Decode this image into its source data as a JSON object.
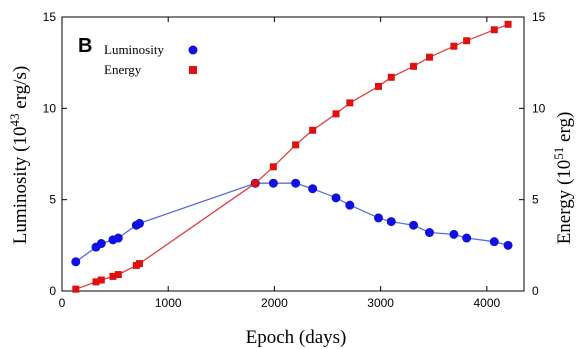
{
  "chart_data": {
    "type": "line",
    "panel_label": "B",
    "xlabel": "Epoch (days)",
    "ylabel_left": {
      "pre": "Luminosity (10",
      "sup": "43",
      "post": " erg/s)"
    },
    "ylabel_right": {
      "pre": "Energy (10",
      "sup": "51",
      "post": " erg)"
    },
    "xlim": [
      0,
      4350
    ],
    "ylim_left": [
      0,
      15
    ],
    "ylim_right": [
      0,
      15
    ],
    "x_ticks": [
      "0",
      "1000",
      "2000",
      "3000",
      "4000"
    ],
    "y_ticks_left": [
      "0",
      "5",
      "10",
      "15"
    ],
    "y_ticks_right": [
      "0",
      "5",
      "10",
      "15"
    ],
    "legend_position": "top-left",
    "series": [
      {
        "name": "Luminosity",
        "marker": "circle",
        "color": "#1010e0",
        "line_color": "#5a6ee0",
        "axis": "left",
        "x": [
          130,
          320,
          370,
          480,
          530,
          700,
          730,
          1820,
          1990,
          2200,
          2360,
          2580,
          2710,
          2980,
          3100,
          3310,
          3460,
          3690,
          3810,
          4070,
          4200
        ],
        "y": [
          1.6,
          2.4,
          2.6,
          2.8,
          2.9,
          3.6,
          3.7,
          5.9,
          5.9,
          5.9,
          5.6,
          5.1,
          4.7,
          4.0,
          3.8,
          3.6,
          3.2,
          3.1,
          2.9,
          2.7,
          2.5
        ]
      },
      {
        "name": "Energy",
        "marker": "square",
        "color": "#e01010",
        "line_color": "#e04040",
        "axis": "right",
        "x": [
          130,
          320,
          370,
          480,
          530,
          700,
          730,
          1820,
          1990,
          2200,
          2360,
          2580,
          2710,
          2980,
          3100,
          3310,
          3460,
          3690,
          3810,
          4070,
          4200
        ],
        "y": [
          0.1,
          0.5,
          0.6,
          0.8,
          0.9,
          1.4,
          1.5,
          5.9,
          6.8,
          8.0,
          8.8,
          9.7,
          10.3,
          11.2,
          11.7,
          12.3,
          12.8,
          13.4,
          13.7,
          14.3,
          14.6
        ]
      }
    ]
  }
}
